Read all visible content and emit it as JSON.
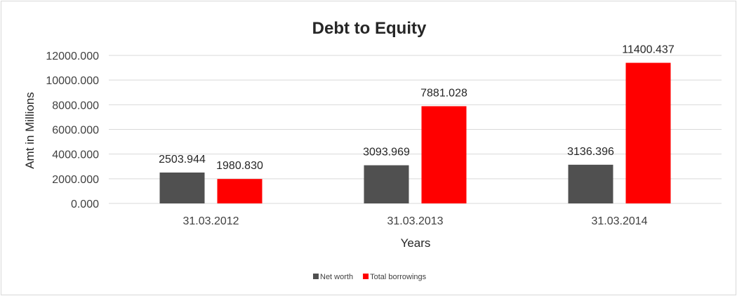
{
  "chart_data": {
    "type": "bar",
    "title": "Debt to Equity",
    "xlabel": "Years",
    "ylabel": "Amt in Millions",
    "categories": [
      "31.03.2012",
      "31.03.2013",
      "31.03.2014"
    ],
    "series": [
      {
        "name": "Net worth",
        "color": "#505050",
        "values": [
          2503.944,
          3093.969,
          3136.396
        ],
        "labels": [
          "2503.944",
          "3093.969",
          "3136.396"
        ]
      },
      {
        "name": "Total borrowings",
        "color": "#ff0000",
        "values": [
          1980.83,
          7881.028,
          11400.437
        ],
        "labels": [
          "1980.830",
          "7881.028",
          "11400.437"
        ]
      }
    ],
    "ylim": [
      0,
      12000
    ],
    "yticks": [
      "0.000",
      "2000.000",
      "4000.000",
      "6000.000",
      "8000.000",
      "10000.000",
      "12000.000"
    ],
    "grid": true,
    "legend_position": "bottom"
  }
}
